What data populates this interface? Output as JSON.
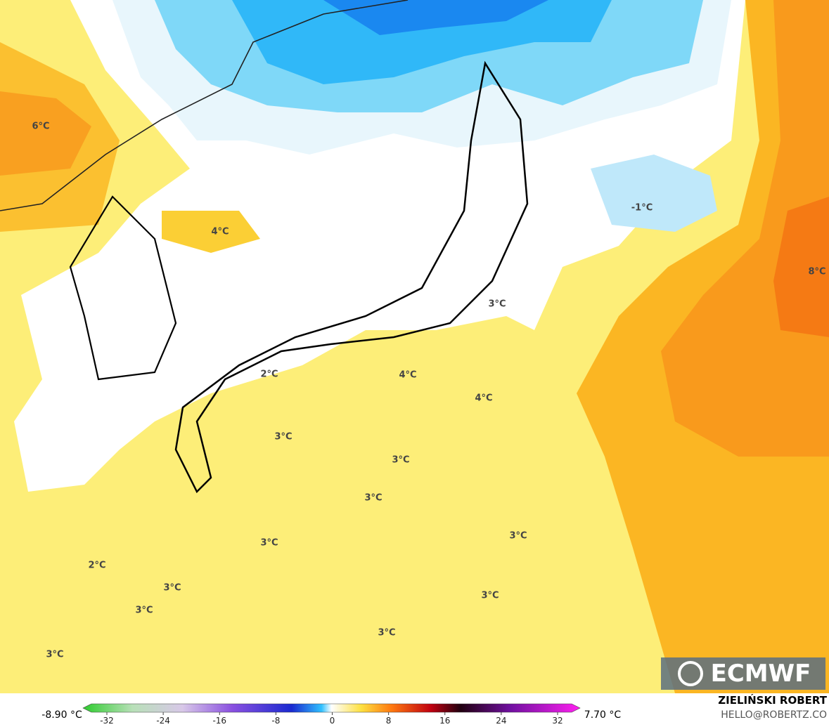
{
  "map": {
    "labels": [
      "6°C",
      "4°C",
      "-1°C",
      "8°C",
      "3°C",
      "2°C",
      "4°C",
      "4°C",
      "3°C",
      "3°C",
      "3°C",
      "3°C",
      "3°C",
      "2°C",
      "3°C",
      "3°C",
      "3°C",
      "3°C",
      "3°C"
    ]
  },
  "colorbar": {
    "min_label": "-8.90 °C",
    "max_label": "7.70 °C",
    "ticks": [
      -32,
      -24,
      -16,
      -8,
      0,
      8,
      16,
      24,
      32
    ]
  },
  "credit": {
    "author": "ZIELIŃSKI ROBERT",
    "email": "HELLO@ROBERTZ.CO",
    "logo": "ECMWF"
  }
}
